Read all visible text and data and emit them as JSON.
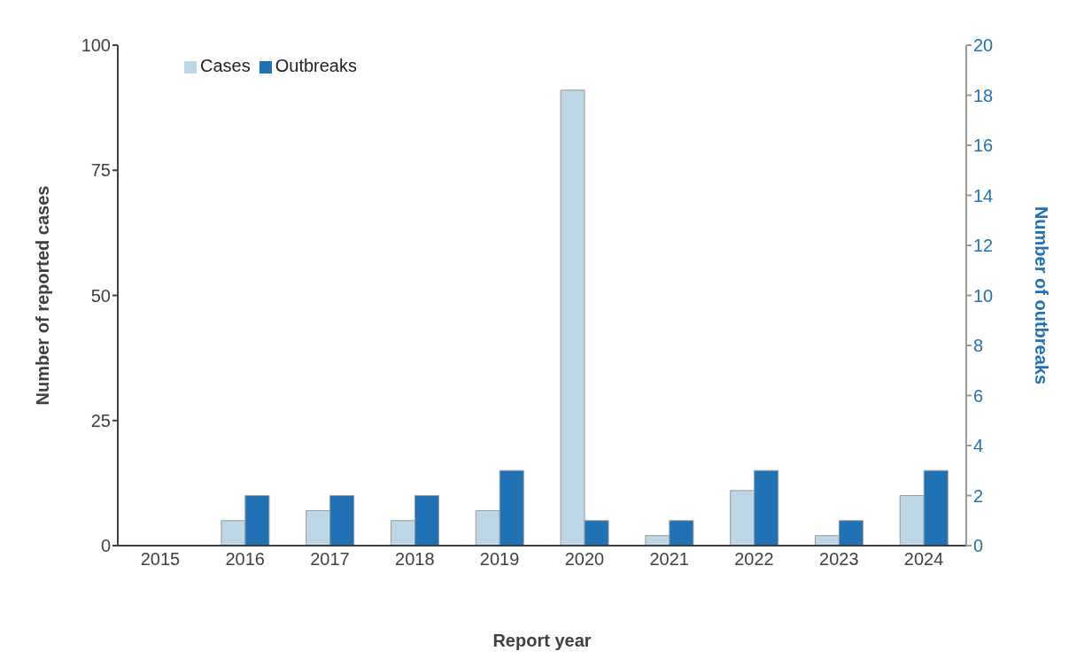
{
  "chart_data": {
    "type": "bar",
    "xlabel": "Report year",
    "ylabel": "Number of reported cases",
    "y2label": "Number of outbreaks",
    "categories": [
      "2015",
      "2016",
      "2017",
      "2018",
      "2019",
      "2020",
      "2021",
      "2022",
      "2023",
      "2024"
    ],
    "series": [
      {
        "name": "Cases",
        "color": "#bdd7e7",
        "values": [
          0,
          5,
          7,
          5,
          7,
          91,
          2,
          11,
          2,
          10
        ]
      },
      {
        "name": "Outbreaks",
        "color": "#2171b5",
        "axis": "y2",
        "values": [
          0,
          2,
          2,
          2,
          3,
          1,
          1,
          3,
          1,
          3
        ]
      }
    ],
    "ylim": [
      0,
      100
    ],
    "yticks": [
      0,
      25,
      50,
      75,
      100
    ],
    "y2lim": [
      0,
      20
    ],
    "y2ticks": [
      0,
      2,
      4,
      6,
      8,
      10,
      12,
      14,
      16,
      18,
      20
    ],
    "grid": false,
    "legend": "top left"
  }
}
